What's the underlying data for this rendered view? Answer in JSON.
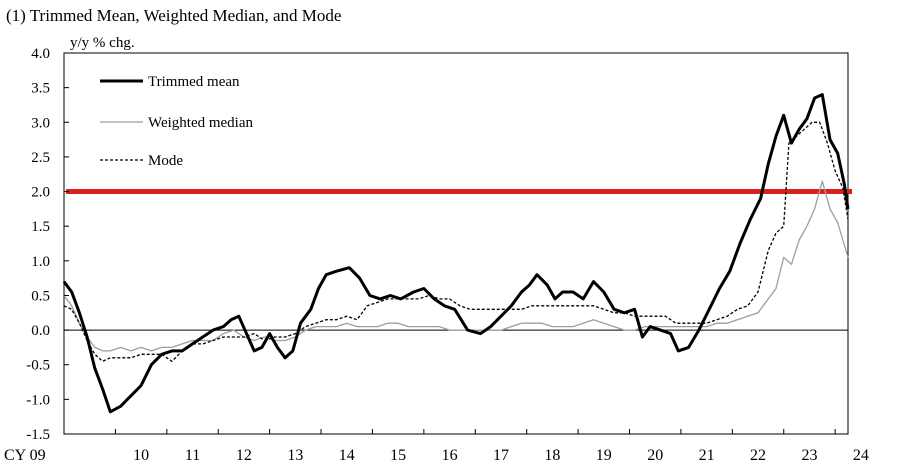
{
  "chart_data": {
    "type": "line",
    "title": "(1) Trimmed Mean, Weighted Median, and Mode",
    "ylabel": "y/y % chg.",
    "xlabel": "",
    "ylim": [
      -1.5,
      4.0
    ],
    "xlim": [
      2009.0,
      2024.25
    ],
    "yticks": [
      "4.0",
      "3.5",
      "3.0",
      "2.5",
      "2.0",
      "1.5",
      "1.0",
      "0.5",
      "0.0",
      "-0.5",
      "-1.0",
      "-1.5"
    ],
    "xticks": [
      {
        "x": 2009.0,
        "label": "CY 09"
      },
      {
        "x": 2010.0,
        "label": "10"
      },
      {
        "x": 2011.0,
        "label": "11"
      },
      {
        "x": 2012.0,
        "label": "12"
      },
      {
        "x": 2013.0,
        "label": "13"
      },
      {
        "x": 2014.0,
        "label": "14"
      },
      {
        "x": 2015.0,
        "label": "15"
      },
      {
        "x": 2016.0,
        "label": "16"
      },
      {
        "x": 2017.0,
        "label": "17"
      },
      {
        "x": 2018.0,
        "label": "18"
      },
      {
        "x": 2019.0,
        "label": "19"
      },
      {
        "x": 2020.0,
        "label": "20"
      },
      {
        "x": 2021.0,
        "label": "21"
      },
      {
        "x": 2022.0,
        "label": "22"
      },
      {
        "x": 2023.0,
        "label": "23"
      },
      {
        "x": 2024.0,
        "label": "24"
      }
    ],
    "legend_position": "top-left",
    "grid": false,
    "reference_lines": [
      {
        "y": 2.0,
        "color": "#d9221f"
      },
      {
        "y": 0.0,
        "color": "#000000"
      }
    ],
    "series": [
      {
        "name": "Trimmed mean",
        "color": "#000000",
        "style": "solid-thick",
        "points": [
          [
            2009.0,
            0.7
          ],
          [
            2009.15,
            0.55
          ],
          [
            2009.3,
            0.25
          ],
          [
            2009.45,
            -0.1
          ],
          [
            2009.6,
            -0.55
          ],
          [
            2009.75,
            -0.85
          ],
          [
            2009.9,
            -1.18
          ],
          [
            2010.1,
            -1.1
          ],
          [
            2010.3,
            -0.95
          ],
          [
            2010.5,
            -0.8
          ],
          [
            2010.7,
            -0.5
          ],
          [
            2010.9,
            -0.35
          ],
          [
            2011.1,
            -0.3
          ],
          [
            2011.3,
            -0.3
          ],
          [
            2011.5,
            -0.2
          ],
          [
            2011.7,
            -0.1
          ],
          [
            2011.9,
            0.0
          ],
          [
            2012.1,
            0.05
          ],
          [
            2012.25,
            0.15
          ],
          [
            2012.4,
            0.2
          ],
          [
            2012.55,
            -0.05
          ],
          [
            2012.7,
            -0.3
          ],
          [
            2012.85,
            -0.25
          ],
          [
            2013.0,
            -0.05
          ],
          [
            2013.15,
            -0.25
          ],
          [
            2013.3,
            -0.4
          ],
          [
            2013.45,
            -0.3
          ],
          [
            2013.6,
            0.1
          ],
          [
            2013.8,
            0.3
          ],
          [
            2013.95,
            0.6
          ],
          [
            2014.1,
            0.8
          ],
          [
            2014.3,
            0.85
          ],
          [
            2014.55,
            0.9
          ],
          [
            2014.75,
            0.75
          ],
          [
            2014.95,
            0.5
          ],
          [
            2015.15,
            0.45
          ],
          [
            2015.35,
            0.5
          ],
          [
            2015.55,
            0.45
          ],
          [
            2015.8,
            0.55
          ],
          [
            2016.0,
            0.6
          ],
          [
            2016.2,
            0.45
          ],
          [
            2016.4,
            0.35
          ],
          [
            2016.6,
            0.3
          ],
          [
            2016.85,
            0.0
          ],
          [
            2017.1,
            -0.05
          ],
          [
            2017.3,
            0.05
          ],
          [
            2017.5,
            0.2
          ],
          [
            2017.7,
            0.35
          ],
          [
            2017.9,
            0.55
          ],
          [
            2018.05,
            0.65
          ],
          [
            2018.2,
            0.8
          ],
          [
            2018.4,
            0.65
          ],
          [
            2018.55,
            0.45
          ],
          [
            2018.7,
            0.55
          ],
          [
            2018.9,
            0.55
          ],
          [
            2019.1,
            0.45
          ],
          [
            2019.3,
            0.7
          ],
          [
            2019.5,
            0.55
          ],
          [
            2019.7,
            0.3
          ],
          [
            2019.9,
            0.25
          ],
          [
            2020.1,
            0.3
          ],
          [
            2020.25,
            -0.1
          ],
          [
            2020.4,
            0.05
          ],
          [
            2020.6,
            0.0
          ],
          [
            2020.8,
            -0.05
          ],
          [
            2020.95,
            -0.3
          ],
          [
            2021.15,
            -0.25
          ],
          [
            2021.35,
            0.0
          ],
          [
            2021.55,
            0.3
          ],
          [
            2021.75,
            0.6
          ],
          [
            2021.95,
            0.85
          ],
          [
            2022.15,
            1.25
          ],
          [
            2022.35,
            1.6
          ],
          [
            2022.55,
            1.9
          ],
          [
            2022.7,
            2.4
          ],
          [
            2022.85,
            2.8
          ],
          [
            2023.0,
            3.1
          ],
          [
            2023.15,
            2.7
          ],
          [
            2023.3,
            2.9
          ],
          [
            2023.45,
            3.05
          ],
          [
            2023.6,
            3.35
          ],
          [
            2023.75,
            3.4
          ],
          [
            2023.9,
            2.75
          ],
          [
            2024.05,
            2.55
          ],
          [
            2024.18,
            2.1
          ],
          [
            2024.25,
            1.75
          ]
        ]
      },
      {
        "name": "Weighted median",
        "color": "#9e9e9e",
        "style": "solid-thin",
        "points": [
          [
            2009.0,
            0.5
          ],
          [
            2009.15,
            0.35
          ],
          [
            2009.3,
            0.1
          ],
          [
            2009.45,
            -0.1
          ],
          [
            2009.6,
            -0.25
          ],
          [
            2009.75,
            -0.3
          ],
          [
            2009.9,
            -0.3
          ],
          [
            2010.1,
            -0.25
          ],
          [
            2010.3,
            -0.3
          ],
          [
            2010.5,
            -0.25
          ],
          [
            2010.7,
            -0.3
          ],
          [
            2010.9,
            -0.25
          ],
          [
            2011.1,
            -0.25
          ],
          [
            2011.3,
            -0.2
          ],
          [
            2011.5,
            -0.15
          ],
          [
            2011.7,
            -0.15
          ],
          [
            2011.9,
            -0.15
          ],
          [
            2012.1,
            -0.05
          ],
          [
            2012.3,
            0.0
          ],
          [
            2012.5,
            -0.1
          ],
          [
            2012.7,
            -0.15
          ],
          [
            2012.9,
            -0.1
          ],
          [
            2013.1,
            -0.15
          ],
          [
            2013.3,
            -0.15
          ],
          [
            2013.5,
            -0.1
          ],
          [
            2013.7,
            0.0
          ],
          [
            2013.9,
            0.05
          ],
          [
            2014.1,
            0.05
          ],
          [
            2014.3,
            0.05
          ],
          [
            2014.5,
            0.1
          ],
          [
            2014.7,
            0.05
          ],
          [
            2014.9,
            0.05
          ],
          [
            2015.1,
            0.05
          ],
          [
            2015.3,
            0.1
          ],
          [
            2015.5,
            0.1
          ],
          [
            2015.7,
            0.05
          ],
          [
            2015.9,
            0.05
          ],
          [
            2016.1,
            0.05
          ],
          [
            2016.3,
            0.05
          ],
          [
            2016.5,
            0.0
          ],
          [
            2016.7,
            0.0
          ],
          [
            2016.9,
            0.0
          ],
          [
            2017.1,
            0.0
          ],
          [
            2017.3,
            0.0
          ],
          [
            2017.5,
            0.0
          ],
          [
            2017.7,
            0.05
          ],
          [
            2017.9,
            0.1
          ],
          [
            2018.1,
            0.1
          ],
          [
            2018.3,
            0.1
          ],
          [
            2018.5,
            0.05
          ],
          [
            2018.7,
            0.05
          ],
          [
            2018.9,
            0.05
          ],
          [
            2019.1,
            0.1
          ],
          [
            2019.3,
            0.15
          ],
          [
            2019.5,
            0.1
          ],
          [
            2019.7,
            0.05
          ],
          [
            2019.9,
            0.0
          ],
          [
            2020.1,
            0.0
          ],
          [
            2020.3,
            0.05
          ],
          [
            2020.5,
            0.05
          ],
          [
            2020.7,
            0.05
          ],
          [
            2020.9,
            0.05
          ],
          [
            2021.1,
            0.05
          ],
          [
            2021.3,
            0.05
          ],
          [
            2021.5,
            0.05
          ],
          [
            2021.7,
            0.1
          ],
          [
            2021.9,
            0.1
          ],
          [
            2022.1,
            0.15
          ],
          [
            2022.3,
            0.2
          ],
          [
            2022.5,
            0.25
          ],
          [
            2022.7,
            0.45
          ],
          [
            2022.85,
            0.6
          ],
          [
            2023.0,
            1.05
          ],
          [
            2023.15,
            0.95
          ],
          [
            2023.3,
            1.3
          ],
          [
            2023.45,
            1.5
          ],
          [
            2023.6,
            1.75
          ],
          [
            2023.75,
            2.15
          ],
          [
            2023.9,
            1.75
          ],
          [
            2024.05,
            1.55
          ],
          [
            2024.15,
            1.3
          ],
          [
            2024.25,
            1.05
          ]
        ]
      },
      {
        "name": "Mode",
        "color": "#000000",
        "style": "dashed",
        "points": [
          [
            2009.0,
            0.35
          ],
          [
            2009.15,
            0.3
          ],
          [
            2009.3,
            0.1
          ],
          [
            2009.45,
            -0.15
          ],
          [
            2009.6,
            -0.35
          ],
          [
            2009.75,
            -0.45
          ],
          [
            2009.9,
            -0.4
          ],
          [
            2010.1,
            -0.4
          ],
          [
            2010.3,
            -0.4
          ],
          [
            2010.5,
            -0.35
          ],
          [
            2010.7,
            -0.35
          ],
          [
            2010.9,
            -0.35
          ],
          [
            2011.1,
            -0.45
          ],
          [
            2011.3,
            -0.3
          ],
          [
            2011.5,
            -0.2
          ],
          [
            2011.7,
            -0.2
          ],
          [
            2011.9,
            -0.15
          ],
          [
            2012.1,
            -0.1
          ],
          [
            2012.3,
            -0.1
          ],
          [
            2012.5,
            -0.1
          ],
          [
            2012.7,
            -0.05
          ],
          [
            2012.9,
            -0.15
          ],
          [
            2013.1,
            -0.1
          ],
          [
            2013.3,
            -0.1
          ],
          [
            2013.5,
            -0.05
          ],
          [
            2013.7,
            0.05
          ],
          [
            2013.9,
            0.1
          ],
          [
            2014.1,
            0.15
          ],
          [
            2014.3,
            0.15
          ],
          [
            2014.5,
            0.2
          ],
          [
            2014.7,
            0.15
          ],
          [
            2014.9,
            0.35
          ],
          [
            2015.1,
            0.4
          ],
          [
            2015.3,
            0.45
          ],
          [
            2015.5,
            0.45
          ],
          [
            2015.7,
            0.45
          ],
          [
            2015.9,
            0.45
          ],
          [
            2016.1,
            0.5
          ],
          [
            2016.3,
            0.45
          ],
          [
            2016.5,
            0.45
          ],
          [
            2016.7,
            0.35
          ],
          [
            2016.9,
            0.3
          ],
          [
            2017.1,
            0.3
          ],
          [
            2017.3,
            0.3
          ],
          [
            2017.5,
            0.3
          ],
          [
            2017.7,
            0.3
          ],
          [
            2017.9,
            0.3
          ],
          [
            2018.1,
            0.35
          ],
          [
            2018.3,
            0.35
          ],
          [
            2018.5,
            0.35
          ],
          [
            2018.7,
            0.35
          ],
          [
            2018.9,
            0.35
          ],
          [
            2019.1,
            0.35
          ],
          [
            2019.3,
            0.35
          ],
          [
            2019.5,
            0.3
          ],
          [
            2019.7,
            0.25
          ],
          [
            2019.9,
            0.25
          ],
          [
            2020.1,
            0.2
          ],
          [
            2020.3,
            0.2
          ],
          [
            2020.5,
            0.2
          ],
          [
            2020.7,
            0.2
          ],
          [
            2020.9,
            0.1
          ],
          [
            2021.1,
            0.1
          ],
          [
            2021.3,
            0.1
          ],
          [
            2021.5,
            0.1
          ],
          [
            2021.7,
            0.15
          ],
          [
            2021.9,
            0.2
          ],
          [
            2022.1,
            0.3
          ],
          [
            2022.3,
            0.35
          ],
          [
            2022.5,
            0.55
          ],
          [
            2022.7,
            1.15
          ],
          [
            2022.85,
            1.4
          ],
          [
            2023.0,
            1.5
          ],
          [
            2023.1,
            2.7
          ],
          [
            2023.25,
            2.8
          ],
          [
            2023.4,
            2.9
          ],
          [
            2023.55,
            3.0
          ],
          [
            2023.7,
            3.0
          ],
          [
            2023.85,
            2.7
          ],
          [
            2024.0,
            2.3
          ],
          [
            2024.15,
            2.05
          ],
          [
            2024.25,
            1.6
          ]
        ]
      }
    ]
  }
}
